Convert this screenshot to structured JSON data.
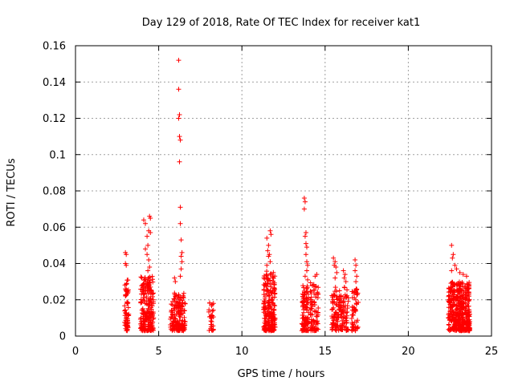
{
  "chart_data": {
    "type": "scatter",
    "title": "Day 129 of 2018, Rate Of TEC Index for receiver kat1",
    "xlabel": "GPS time / hours",
    "ylabel": "ROTI / TECUs",
    "xlim": [
      0,
      25
    ],
    "ylim": [
      0,
      0.16
    ],
    "xticks": [
      "0",
      "5",
      "10",
      "15",
      "20",
      "25"
    ],
    "yticks": [
      "0",
      "0.02",
      "0.04",
      "0.06",
      "0.08",
      "0.1",
      "0.12",
      "0.14",
      "0.16"
    ],
    "grid": true,
    "marker": "+",
    "color": "#ff0000",
    "clusters": [
      {
        "x_range": [
          2.95,
          3.2
        ],
        "y_max": 0.031,
        "n": 60
      },
      {
        "x_range": [
          3.9,
          4.7
        ],
        "y_max": 0.033,
        "n": 220
      },
      {
        "x_range": [
          5.7,
          6.2
        ],
        "y_max": 0.024,
        "n": 90
      },
      {
        "x_range": [
          6.2,
          6.6
        ],
        "y_max": 0.025,
        "n": 80
      },
      {
        "x_range": [
          8.0,
          8.3
        ],
        "y_max": 0.019,
        "n": 30
      },
      {
        "x_range": [
          11.3,
          12.0
        ],
        "y_max": 0.036,
        "n": 220
      },
      {
        "x_range": [
          13.6,
          14.0
        ],
        "y_max": 0.028,
        "n": 110
      },
      {
        "x_range": [
          14.1,
          14.6
        ],
        "y_max": 0.03,
        "n": 80
      },
      {
        "x_range": [
          15.4,
          15.9
        ],
        "y_max": 0.027,
        "n": 80
      },
      {
        "x_range": [
          15.9,
          16.4
        ],
        "y_max": 0.027,
        "n": 70
      },
      {
        "x_range": [
          16.6,
          17.0
        ],
        "y_max": 0.026,
        "n": 55
      },
      {
        "x_range": [
          22.4,
          23.7
        ],
        "y_max": 0.03,
        "n": 420
      }
    ],
    "outliers": [
      [
        3.0,
        0.046
      ],
      [
        3.05,
        0.045
      ],
      [
        3.05,
        0.039
      ],
      [
        3.0,
        0.04
      ],
      [
        4.1,
        0.064
      ],
      [
        4.2,
        0.062
      ],
      [
        4.3,
        0.055
      ],
      [
        4.35,
        0.05
      ],
      [
        4.45,
        0.066
      ],
      [
        4.5,
        0.065
      ],
      [
        4.4,
        0.058
      ],
      [
        4.5,
        0.057
      ],
      [
        4.3,
        0.045
      ],
      [
        4.4,
        0.042
      ],
      [
        4.2,
        0.048
      ],
      [
        4.45,
        0.038
      ],
      [
        4.35,
        0.036
      ],
      [
        5.95,
        0.032
      ],
      [
        6.0,
        0.03
      ],
      [
        6.2,
        0.152
      ],
      [
        6.2,
        0.136
      ],
      [
        6.25,
        0.122
      ],
      [
        6.2,
        0.12
      ],
      [
        6.25,
        0.11
      ],
      [
        6.3,
        0.108
      ],
      [
        6.25,
        0.096
      ],
      [
        6.3,
        0.071
      ],
      [
        6.3,
        0.062
      ],
      [
        6.35,
        0.053
      ],
      [
        6.4,
        0.046
      ],
      [
        6.35,
        0.044
      ],
      [
        6.4,
        0.041
      ],
      [
        6.35,
        0.037
      ],
      [
        6.3,
        0.033
      ],
      [
        11.7,
        0.058
      ],
      [
        11.75,
        0.056
      ],
      [
        11.5,
        0.054
      ],
      [
        11.6,
        0.05
      ],
      [
        11.55,
        0.047
      ],
      [
        11.65,
        0.045
      ],
      [
        11.7,
        0.041
      ],
      [
        11.5,
        0.039
      ],
      [
        11.6,
        0.044
      ],
      [
        13.75,
        0.076
      ],
      [
        13.8,
        0.074
      ],
      [
        13.75,
        0.07
      ],
      [
        13.85,
        0.057
      ],
      [
        13.8,
        0.055
      ],
      [
        13.85,
        0.051
      ],
      [
        13.9,
        0.049
      ],
      [
        13.85,
        0.045
      ],
      [
        13.9,
        0.041
      ],
      [
        13.95,
        0.039
      ],
      [
        13.9,
        0.036
      ],
      [
        13.8,
        0.033
      ],
      [
        13.95,
        0.031
      ],
      [
        14.4,
        0.033
      ],
      [
        14.5,
        0.034
      ],
      [
        15.5,
        0.043
      ],
      [
        15.6,
        0.041
      ],
      [
        15.55,
        0.039
      ],
      [
        15.65,
        0.038
      ],
      [
        15.7,
        0.035
      ],
      [
        15.6,
        0.032
      ],
      [
        16.1,
        0.036
      ],
      [
        16.2,
        0.034
      ],
      [
        16.15,
        0.032
      ],
      [
        16.25,
        0.03
      ],
      [
        16.8,
        0.042
      ],
      [
        16.85,
        0.039
      ],
      [
        16.8,
        0.036
      ],
      [
        16.9,
        0.033
      ],
      [
        16.85,
        0.03
      ],
      [
        22.6,
        0.05
      ],
      [
        22.7,
        0.045
      ],
      [
        22.65,
        0.043
      ],
      [
        22.8,
        0.039
      ],
      [
        22.9,
        0.037
      ],
      [
        23.3,
        0.034
      ],
      [
        23.5,
        0.033
      ],
      [
        22.6,
        0.036
      ],
      [
        23.1,
        0.035
      ]
    ]
  }
}
